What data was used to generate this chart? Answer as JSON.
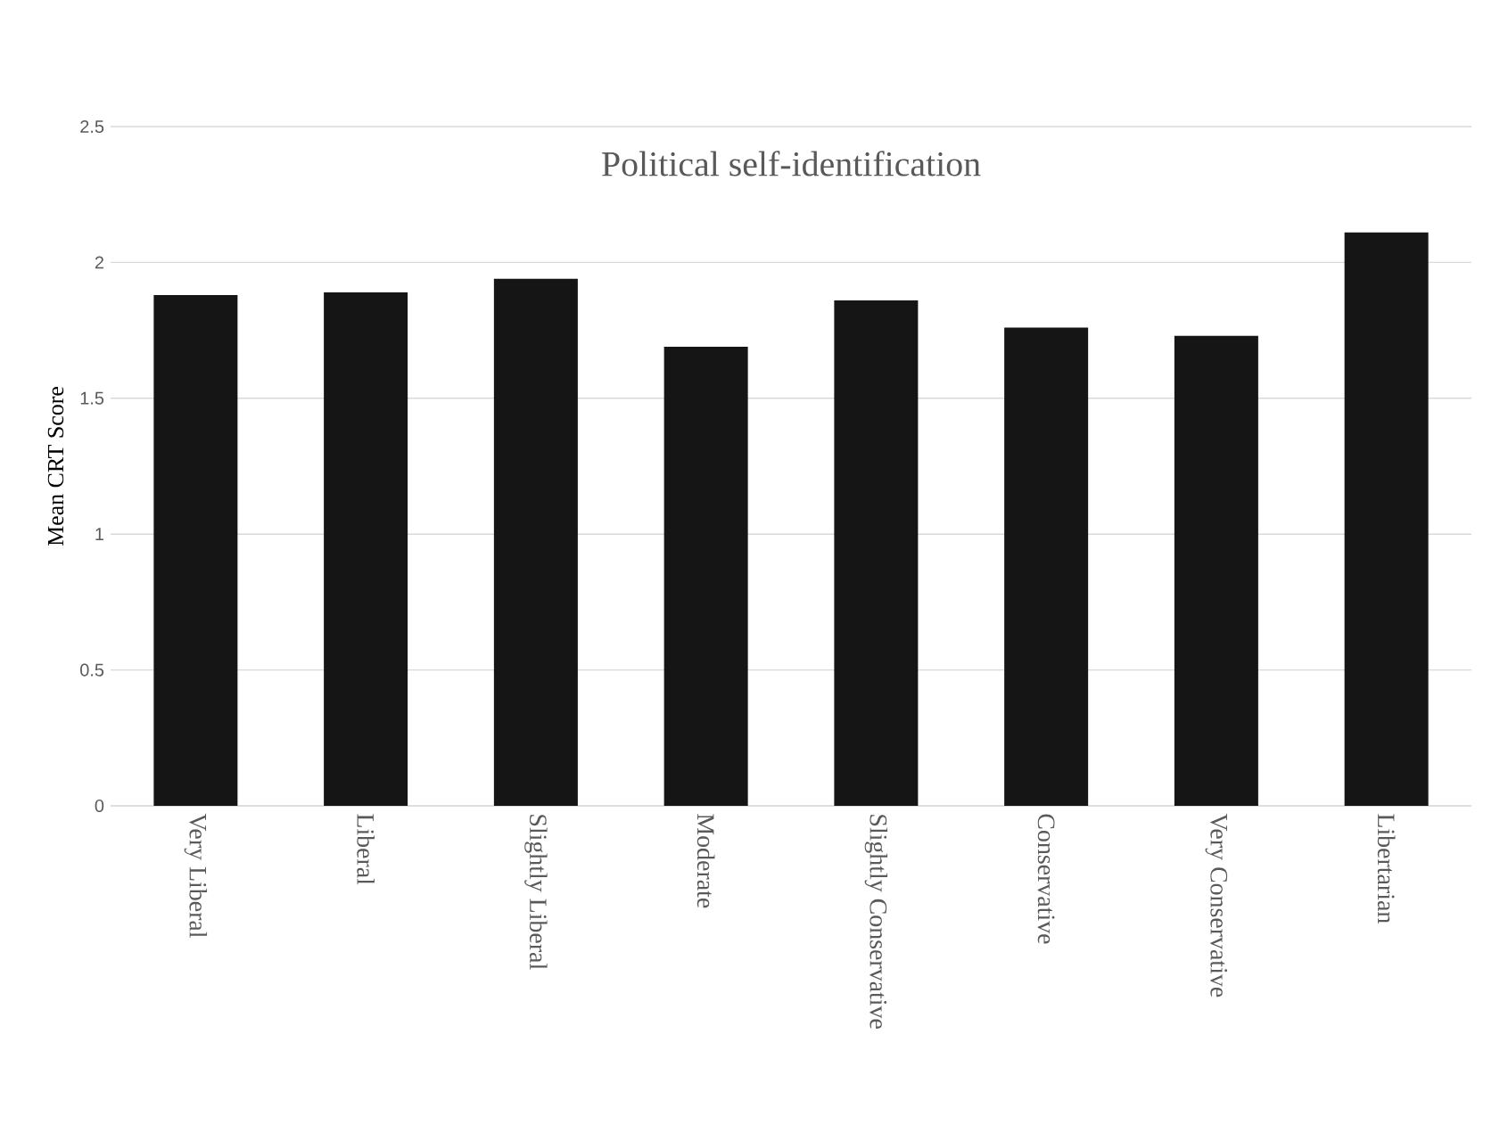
{
  "chart_data": {
    "type": "bar",
    "title": "Political self-identification",
    "ylabel": "Mean CRT Score",
    "categories": [
      "Very Liberal",
      "Liberal",
      "Slightly Liberal",
      "Moderate",
      "Slightly Conservative",
      "Conservative",
      "Very Conservative",
      "Libertarian"
    ],
    "values": [
      1.88,
      1.89,
      1.94,
      1.69,
      1.86,
      1.76,
      1.73,
      2.11
    ],
    "color": "#151515",
    "ylim": [
      0,
      2.5
    ],
    "yticks": [
      0,
      0.5,
      1,
      1.5,
      2,
      2.5
    ],
    "grid": "y"
  }
}
